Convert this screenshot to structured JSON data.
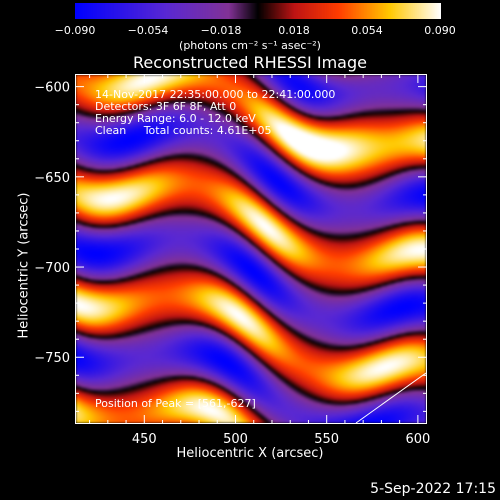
{
  "colorbar": {
    "ticks": [
      "−0.090",
      "−0.054",
      "−0.018",
      "0.018",
      "0.054",
      "0.090"
    ],
    "unit_text": "(photons cm⁻² s⁻¹ asec⁻²)",
    "range": [
      -0.09,
      0.09
    ],
    "colormap": "rainbow/fire: blue-purple-black-red-orange-yellow-white"
  },
  "header": {
    "title": "Reconstructed RHESSI Image"
  },
  "info": {
    "time_range": "14-Nov-2017 22:35:00.000 to 22:41:00.000",
    "detectors": "Detectors: 3F 6F 8F, Att 0",
    "energy": "Energy Range: 6.0 - 12.0 keV",
    "method": "Clean     Total counts: 4.61E+05",
    "peak": "Position of Peak = [561,-627]"
  },
  "footer": {
    "date": "5-Sep-2022 17:15"
  },
  "chart_data": {
    "type": "heatmap",
    "title": "Reconstructed RHESSI Image",
    "xlabel": "Heliocentric X (arcsec)",
    "ylabel": "Heliocentric Y (arcsec)",
    "xlim": [
      412,
      605
    ],
    "ylim": [
      -787,
      -593
    ],
    "x_ticks": [
      450,
      500,
      550,
      600
    ],
    "y_ticks": [
      -600,
      -650,
      -700,
      -750
    ],
    "x_tick_labels": [
      "450",
      "500",
      "550",
      "600"
    ],
    "y_tick_labels": [
      "−600",
      "−650",
      "−700",
      "−750"
    ],
    "peak": [
      561,
      -627
    ],
    "colors": {
      "negative": "#0000ff",
      "zero": "#000000",
      "positive_mid": "#ff3000",
      "max": "#ffffff"
    }
  }
}
